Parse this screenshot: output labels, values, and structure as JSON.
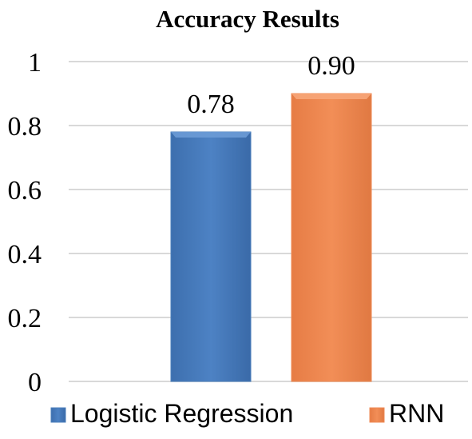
{
  "chart_data": {
    "type": "bar",
    "title": "Accuracy Results",
    "xlabel": "",
    "ylabel": "",
    "ylim": [
      0,
      1
    ],
    "yticks": [
      0,
      0.2,
      0.4,
      0.6,
      0.8,
      1
    ],
    "ytick_labels": [
      "0",
      "0.2",
      "0.4",
      "0.6",
      "0.8",
      "1"
    ],
    "grid": true,
    "legend_position": "bottom",
    "series": [
      {
        "name": "Logistic Regression",
        "value": 0.78,
        "label": "0.78",
        "color": "#4a7ebb"
      },
      {
        "name": "RNN",
        "value": 0.9,
        "label": "0.90",
        "color": "#ef8a54"
      }
    ]
  }
}
